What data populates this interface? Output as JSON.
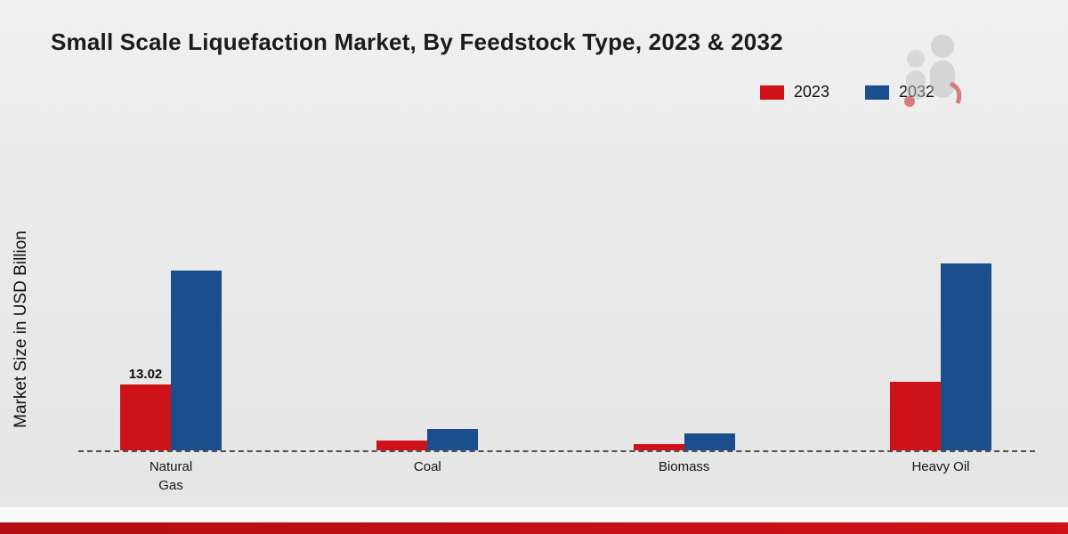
{
  "page": {
    "title": "Small Scale Liquefaction Market, By Feedstock Type, 2023 & 2032"
  },
  "y_axis_label": "Market Size in USD Billion",
  "legend": [
    {
      "label": "2023",
      "color": "#ce121a"
    },
    {
      "label": "2032",
      "color": "#1a4e8c"
    }
  ],
  "chart_data": {
    "type": "bar",
    "title": "Small Scale Liquefaction Market, By Feedstock Type, 2023 & 2032",
    "ylabel": "Market Size in USD Billion",
    "xlabel": "",
    "categories": [
      "Natural Gas",
      "Coal",
      "Biomass",
      "Heavy Oil"
    ],
    "category_labels": [
      "Natural\nGas",
      "Coal",
      "Biomass",
      "Heavy Oil"
    ],
    "series": [
      {
        "name": "2023",
        "color": "#ce121a",
        "values": [
          13.02,
          1.9,
          1.2,
          13.6
        ],
        "data_labels": [
          "13.02",
          "",
          "",
          ""
        ]
      },
      {
        "name": "2032",
        "color": "#1a4e8c",
        "values": [
          35.5,
          4.2,
          3.3,
          36.9
        ],
        "data_labels": [
          "",
          "",
          "",
          ""
        ]
      }
    ],
    "ylim": [
      0,
      40
    ],
    "grid": false,
    "axis_baseline": "dashed",
    "legend_position": "top-right",
    "units": "USD Billion"
  },
  "footer": {
    "accent_color": "#c20d12"
  }
}
